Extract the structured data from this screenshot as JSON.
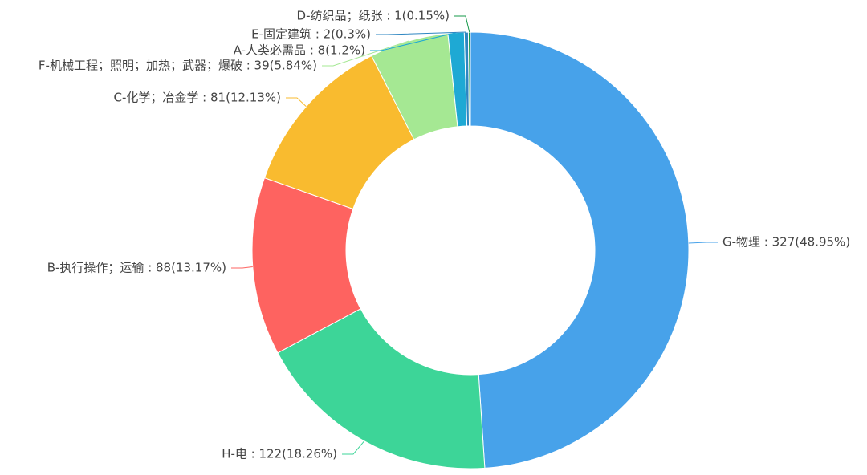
{
  "chart_data": {
    "type": "donut",
    "values": [
      327,
      122,
      88,
      81,
      39,
      8,
      2,
      1
    ],
    "value_labels": [
      "G-物理 : 327(48.95%)",
      "H-电 : 122(18.26%)",
      "B-执行操作；运输 : 88(13.17%)",
      "C-化学；冶金学 : 81(12.13%)",
      "F-机械工程；照明；加热；武器；爆破 : 39(5.84%)",
      "A-人类必需品 : 8(1.2%)",
      "E-固定建筑 : 2(0.3%)",
      "D-纺织品；纸张 : 1(0.15%)"
    ],
    "colors": [
      "#47a2ea",
      "#3dd598",
      "#fe6360",
      "#f9bb2f",
      "#a5e893",
      "#1ea9d4",
      "#2e86c1",
      "#16994a"
    ]
  }
}
